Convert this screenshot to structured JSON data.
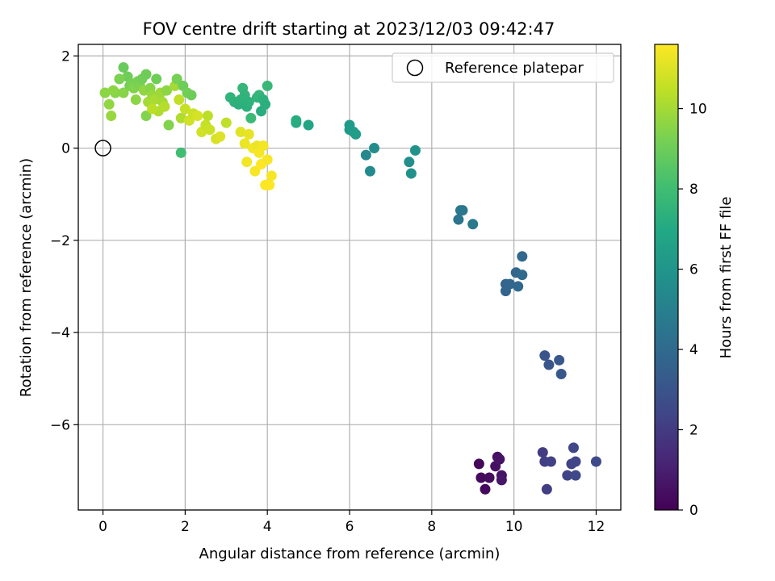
{
  "chart_data": {
    "type": "scatter",
    "title": "FOV centre drift starting at 2023/12/03 09:42:47",
    "xlabel": "Angular distance from reference (arcmin)",
    "ylabel": "Rotation from reference (arcmin)",
    "xlim": [
      -0.6,
      12.6
    ],
    "ylim": [
      -7.85,
      2.25
    ],
    "xticks": [
      0,
      2,
      4,
      6,
      8,
      10,
      12
    ],
    "xtick_labels": [
      "0",
      "2",
      "4",
      "6",
      "8",
      "10",
      "12"
    ],
    "yticks": [
      2,
      0,
      -2,
      -4,
      -6
    ],
    "ytick_labels": [
      "2",
      "0",
      "−2",
      "−4",
      "−6"
    ],
    "grid": true,
    "legend": {
      "position": "upper-right",
      "entries": [
        "Reference platepar"
      ]
    },
    "reference_point": {
      "x": 0,
      "y": 0
    },
    "colorbar": {
      "label": "Hours from first FF file",
      "range": [
        0,
        11.6
      ],
      "ticks": [
        0,
        2,
        4,
        6,
        8,
        10
      ],
      "tick_labels": [
        "0",
        "2",
        "4",
        "6",
        "8",
        "10"
      ],
      "colormap": "viridis"
    },
    "points": [
      {
        "x": 9.15,
        "y": -6.85,
        "c": 0.2
      },
      {
        "x": 9.2,
        "y": -7.15,
        "c": 0.3
      },
      {
        "x": 9.3,
        "y": -7.4,
        "c": 0.3
      },
      {
        "x": 9.4,
        "y": -7.15,
        "c": 0.4
      },
      {
        "x": 9.55,
        "y": -6.9,
        "c": 0.5
      },
      {
        "x": 9.6,
        "y": -6.7,
        "c": 0.5
      },
      {
        "x": 9.65,
        "y": -6.75,
        "c": 0.6
      },
      {
        "x": 9.7,
        "y": -7.1,
        "c": 0.6
      },
      {
        "x": 9.7,
        "y": -7.2,
        "c": 0.7
      },
      {
        "x": 10.7,
        "y": -6.6,
        "c": 2.0
      },
      {
        "x": 10.75,
        "y": -6.8,
        "c": 2.1
      },
      {
        "x": 10.8,
        "y": -7.4,
        "c": 2.1
      },
      {
        "x": 10.9,
        "y": -6.8,
        "c": 2.2
      },
      {
        "x": 11.3,
        "y": -7.1,
        "c": 2.3
      },
      {
        "x": 11.4,
        "y": -6.85,
        "c": 2.3
      },
      {
        "x": 11.45,
        "y": -6.5,
        "c": 2.4
      },
      {
        "x": 11.5,
        "y": -6.8,
        "c": 2.4
      },
      {
        "x": 11.5,
        "y": -7.1,
        "c": 2.5
      },
      {
        "x": 12.0,
        "y": -6.8,
        "c": 2.6
      },
      {
        "x": 10.75,
        "y": -4.5,
        "c": 3.0
      },
      {
        "x": 10.85,
        "y": -4.7,
        "c": 3.1
      },
      {
        "x": 11.1,
        "y": -4.6,
        "c": 3.2
      },
      {
        "x": 11.15,
        "y": -4.9,
        "c": 3.2
      },
      {
        "x": 9.8,
        "y": -2.95,
        "c": 3.7
      },
      {
        "x": 9.8,
        "y": -3.1,
        "c": 3.7
      },
      {
        "x": 9.9,
        "y": -2.95,
        "c": 3.8
      },
      {
        "x": 10.05,
        "y": -2.7,
        "c": 3.8
      },
      {
        "x": 10.1,
        "y": -3.0,
        "c": 3.9
      },
      {
        "x": 10.2,
        "y": -2.35,
        "c": 3.9
      },
      {
        "x": 10.2,
        "y": -2.75,
        "c": 4.0
      },
      {
        "x": 8.65,
        "y": -1.55,
        "c": 4.5
      },
      {
        "x": 8.7,
        "y": -1.35,
        "c": 4.6
      },
      {
        "x": 8.75,
        "y": -1.35,
        "c": 4.6
      },
      {
        "x": 9.0,
        "y": -1.65,
        "c": 4.7
      },
      {
        "x": 6.4,
        "y": -0.15,
        "c": 5.4
      },
      {
        "x": 6.5,
        "y": -0.5,
        "c": 5.5
      },
      {
        "x": 6.6,
        "y": 0.0,
        "c": 5.6
      },
      {
        "x": 7.45,
        "y": -0.3,
        "c": 5.7
      },
      {
        "x": 7.5,
        "y": -0.55,
        "c": 5.8
      },
      {
        "x": 7.6,
        "y": -0.05,
        "c": 5.9
      },
      {
        "x": 6.0,
        "y": 0.4,
        "c": 6.2
      },
      {
        "x": 6.0,
        "y": 0.5,
        "c": 6.3
      },
      {
        "x": 6.1,
        "y": 0.35,
        "c": 6.3
      },
      {
        "x": 6.15,
        "y": 0.3,
        "c": 6.4
      },
      {
        "x": 4.7,
        "y": 0.55,
        "c": 7.1
      },
      {
        "x": 4.7,
        "y": 0.6,
        "c": 7.2
      },
      {
        "x": 5.0,
        "y": 0.5,
        "c": 6.8
      },
      {
        "x": 3.1,
        "y": 1.1,
        "c": 7.5
      },
      {
        "x": 3.2,
        "y": 1.0,
        "c": 7.4
      },
      {
        "x": 3.3,
        "y": 0.95,
        "c": 7.3
      },
      {
        "x": 3.35,
        "y": 1.05,
        "c": 7.4
      },
      {
        "x": 3.4,
        "y": 1.3,
        "c": 7.6
      },
      {
        "x": 3.45,
        "y": 1.15,
        "c": 7.5
      },
      {
        "x": 3.5,
        "y": 0.9,
        "c": 7.3
      },
      {
        "x": 3.55,
        "y": 1.0,
        "c": 7.4
      },
      {
        "x": 3.6,
        "y": 0.65,
        "c": 7.8
      },
      {
        "x": 3.75,
        "y": 1.1,
        "c": 7.5
      },
      {
        "x": 3.8,
        "y": 1.15,
        "c": 7.6
      },
      {
        "x": 3.85,
        "y": 0.8,
        "c": 7.2
      },
      {
        "x": 3.9,
        "y": 1.05,
        "c": 7.4
      },
      {
        "x": 3.95,
        "y": 0.95,
        "c": 7.3
      },
      {
        "x": 4.0,
        "y": 1.35,
        "c": 7.7
      },
      {
        "x": 1.9,
        "y": -0.1,
        "c": 8.0
      },
      {
        "x": 0.5,
        "y": 1.75,
        "c": 8.9
      },
      {
        "x": 0.6,
        "y": 1.55,
        "c": 9.0
      },
      {
        "x": 0.65,
        "y": 1.35,
        "c": 9.1
      },
      {
        "x": 0.7,
        "y": 1.4,
        "c": 9.2
      },
      {
        "x": 0.4,
        "y": 1.5,
        "c": 9.3
      },
      {
        "x": 0.3,
        "y": 1.2,
        "c": 9.5
      },
      {
        "x": 0.05,
        "y": 1.2,
        "c": 9.6
      },
      {
        "x": 0.15,
        "y": 0.95,
        "c": 9.7
      },
      {
        "x": 0.2,
        "y": 0.7,
        "c": 9.8
      },
      {
        "x": 0.25,
        "y": 1.25,
        "c": 9.6
      },
      {
        "x": 0.5,
        "y": 1.2,
        "c": 9.5
      },
      {
        "x": 0.75,
        "y": 1.3,
        "c": 9.4
      },
      {
        "x": 0.8,
        "y": 1.05,
        "c": 9.6
      },
      {
        "x": 0.85,
        "y": 1.45,
        "c": 9.2
      },
      {
        "x": 0.9,
        "y": 1.35,
        "c": 9.3
      },
      {
        "x": 0.95,
        "y": 1.5,
        "c": 9.1
      },
      {
        "x": 1.0,
        "y": 1.25,
        "c": 9.7
      },
      {
        "x": 1.05,
        "y": 1.6,
        "c": 9.0
      },
      {
        "x": 1.1,
        "y": 1.0,
        "c": 10.0
      },
      {
        "x": 1.15,
        "y": 1.3,
        "c": 9.5
      },
      {
        "x": 1.2,
        "y": 1.15,
        "c": 9.8
      },
      {
        "x": 1.25,
        "y": 1.05,
        "c": 10.1
      },
      {
        "x": 1.3,
        "y": 1.5,
        "c": 9.0
      },
      {
        "x": 1.35,
        "y": 0.8,
        "c": 10.2
      },
      {
        "x": 1.4,
        "y": 1.2,
        "c": 9.9
      },
      {
        "x": 1.45,
        "y": 1.0,
        "c": 10.0
      },
      {
        "x": 1.5,
        "y": 0.9,
        "c": 10.3
      },
      {
        "x": 1.55,
        "y": 1.25,
        "c": 9.6
      },
      {
        "x": 1.6,
        "y": 0.5,
        "c": 9.4
      },
      {
        "x": 1.05,
        "y": 0.7,
        "c": 9.4
      },
      {
        "x": 1.2,
        "y": 0.85,
        "c": 10.4
      },
      {
        "x": 1.75,
        "y": 1.35,
        "c": 10.0
      },
      {
        "x": 1.8,
        "y": 1.5,
        "c": 9.2
      },
      {
        "x": 1.85,
        "y": 1.05,
        "c": 10.5
      },
      {
        "x": 1.9,
        "y": 0.65,
        "c": 10.2
      },
      {
        "x": 1.95,
        "y": 1.35,
        "c": 9.0
      },
      {
        "x": 2.0,
        "y": 0.85,
        "c": 10.6
      },
      {
        "x": 2.05,
        "y": 1.2,
        "c": 9.1
      },
      {
        "x": 2.1,
        "y": 0.6,
        "c": 10.8
      },
      {
        "x": 2.15,
        "y": 1.15,
        "c": 9.0
      },
      {
        "x": 2.2,
        "y": 0.75,
        "c": 10.7
      },
      {
        "x": 2.3,
        "y": 0.7,
        "c": 10.9
      },
      {
        "x": 2.4,
        "y": 0.35,
        "c": 10.8
      },
      {
        "x": 2.5,
        "y": 0.5,
        "c": 10.6
      },
      {
        "x": 2.55,
        "y": 0.7,
        "c": 10.4
      },
      {
        "x": 2.6,
        "y": 0.4,
        "c": 10.7
      },
      {
        "x": 2.75,
        "y": 0.2,
        "c": 10.9
      },
      {
        "x": 2.85,
        "y": 0.25,
        "c": 11.0
      },
      {
        "x": 3.0,
        "y": 0.55,
        "c": 10.5
      },
      {
        "x": 3.35,
        "y": 0.35,
        "c": 11.1
      },
      {
        "x": 3.45,
        "y": 0.1,
        "c": 11.3
      },
      {
        "x": 3.5,
        "y": -0.3,
        "c": 11.4
      },
      {
        "x": 3.55,
        "y": 0.3,
        "c": 11.2
      },
      {
        "x": 3.65,
        "y": 0.0,
        "c": 11.4
      },
      {
        "x": 3.7,
        "y": -0.5,
        "c": 11.5
      },
      {
        "x": 3.75,
        "y": 0.05,
        "c": 11.3
      },
      {
        "x": 3.8,
        "y": -0.1,
        "c": 11.5
      },
      {
        "x": 3.85,
        "y": -0.35,
        "c": 11.6
      },
      {
        "x": 3.9,
        "y": 0.05,
        "c": 11.4
      },
      {
        "x": 3.95,
        "y": -0.8,
        "c": 11.6
      },
      {
        "x": 4.0,
        "y": -0.25,
        "c": 11.5
      },
      {
        "x": 4.05,
        "y": -0.8,
        "c": 11.6
      },
      {
        "x": 4.1,
        "y": -0.6,
        "c": 11.5
      }
    ]
  }
}
